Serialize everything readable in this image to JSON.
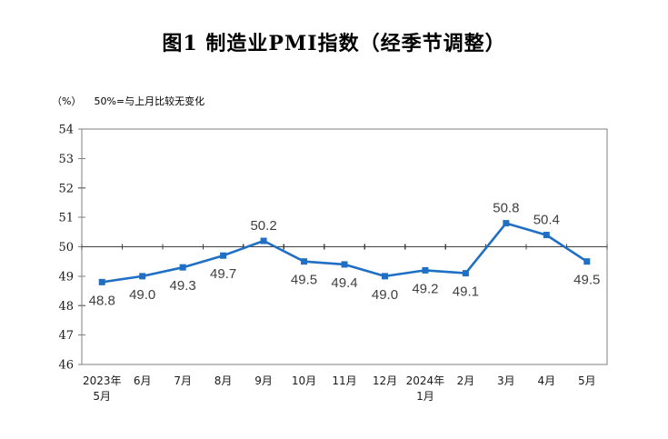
{
  "title": "图1 制造业PMI指数（经季节调整）",
  "subtitle": {
    "unit": "（%）",
    "note": "50%=与上月比较无变化"
  },
  "chart_data": {
    "type": "line",
    "title": "图1 制造业PMI指数（经季节调整）",
    "categories": [
      "2023年\n5月",
      "6月",
      "7月",
      "8月",
      "9月",
      "10月",
      "11月",
      "12月",
      "2024年\n1月",
      "2月",
      "3月",
      "4月",
      "5月"
    ],
    "values": [
      48.8,
      49.0,
      49.3,
      49.7,
      50.2,
      49.5,
      49.4,
      49.0,
      49.2,
      49.1,
      50.8,
      50.4,
      49.5
    ],
    "series_name": "制造业PMI指数",
    "ylabel_unit": "%",
    "ylim": [
      46,
      54
    ],
    "ytick_step": 1,
    "reference_line": 50,
    "label_positions": [
      "below",
      "below",
      "below",
      "below",
      "above",
      "below",
      "below",
      "below",
      "below",
      "below",
      "above",
      "above",
      "below"
    ],
    "grid": false,
    "legend": "none",
    "colors": {
      "line": "#1F6FC5",
      "marker": "#1F6FC5",
      "reference_line": "#404040",
      "plot_border": "#7F7F7F",
      "data_label": "#404040",
      "tick_label": "#1a1a1a",
      "background": "#ffffff"
    }
  }
}
